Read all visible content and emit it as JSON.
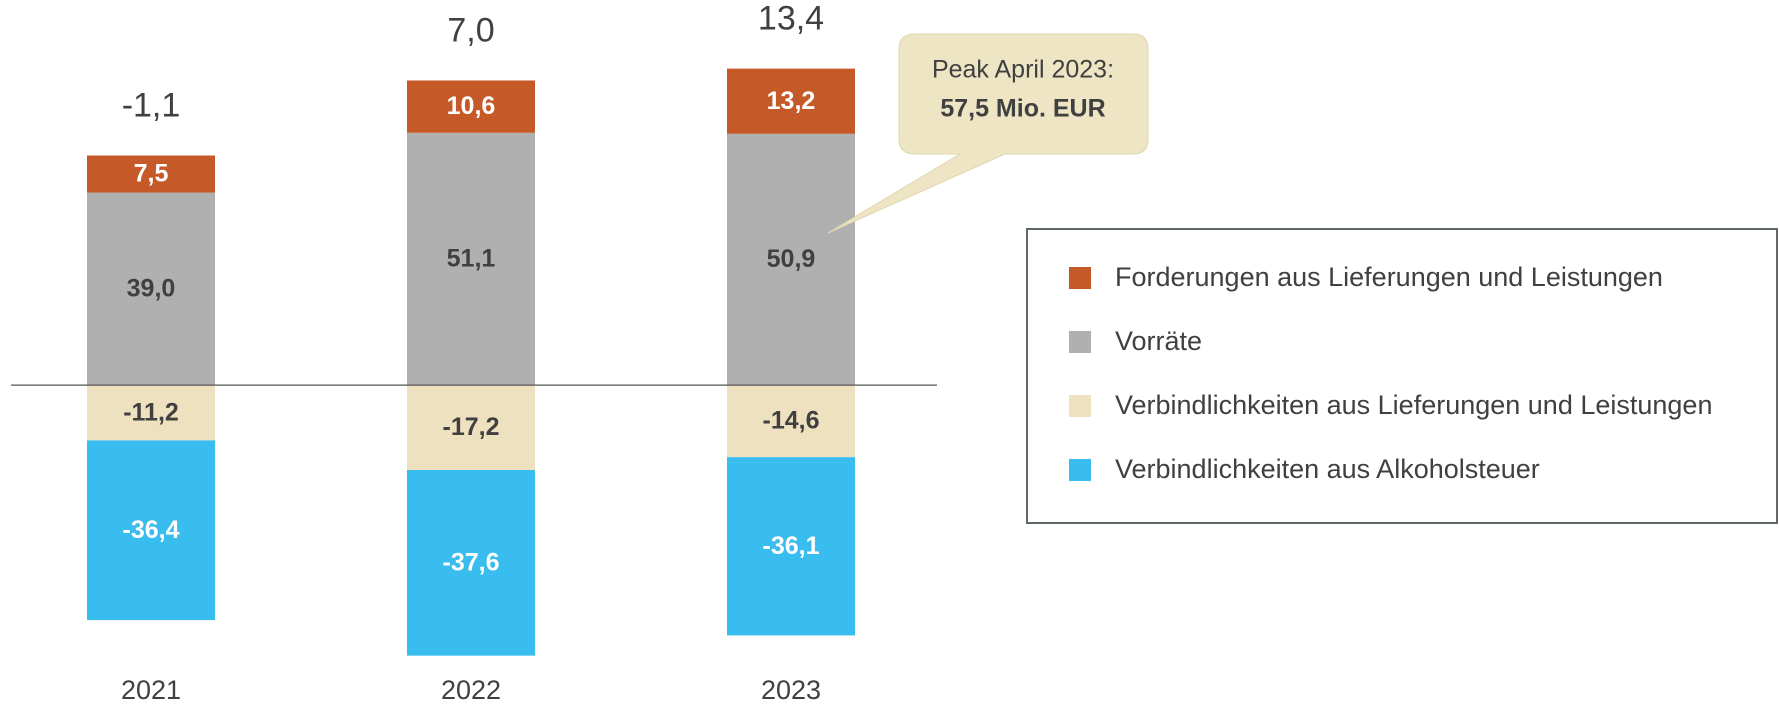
{
  "chart_data": {
    "type": "stacked_bar",
    "categories": [
      "2021",
      "2022",
      "2023"
    ],
    "series": [
      {
        "name": "Forderungen aus Lieferungen und Leistungen",
        "color": "#c55a28",
        "label_color": "#ffffff",
        "values": [
          7.5,
          10.6,
          13.2
        ],
        "value_labels": [
          "7,5",
          "10,6",
          "13,2"
        ]
      },
      {
        "name": "Vorräte",
        "color": "#b0b0b0",
        "label_color": "#404040",
        "values": [
          39.0,
          51.1,
          50.9
        ],
        "value_labels": [
          "39,0",
          "51,1",
          "50,9"
        ]
      },
      {
        "name": "Verbindlichkeiten aus Lieferungen und Leistungen",
        "color": "#ede1c0",
        "label_color": "#404040",
        "values": [
          -11.2,
          -17.2,
          -14.6
        ],
        "value_labels": [
          "-11,2",
          "-17,2",
          "-14,6"
        ]
      },
      {
        "name": "Verbindlichkeiten aus Alkoholsteuer",
        "color": "#38bdee",
        "label_color": "#ffffff",
        "values": [
          -36.4,
          -37.6,
          -36.1
        ],
        "value_labels": [
          "-36,4",
          "-37,6",
          "-36,1"
        ]
      }
    ],
    "totals": [
      -1.1,
      7.0,
      13.4
    ],
    "total_labels": [
      "-1,1",
      "7,0",
      "13,4"
    ],
    "annotation": {
      "line1": "Peak April 2023:",
      "line2": "57,5 Mio. EUR"
    },
    "ylim": [
      -65,
      78
    ]
  }
}
